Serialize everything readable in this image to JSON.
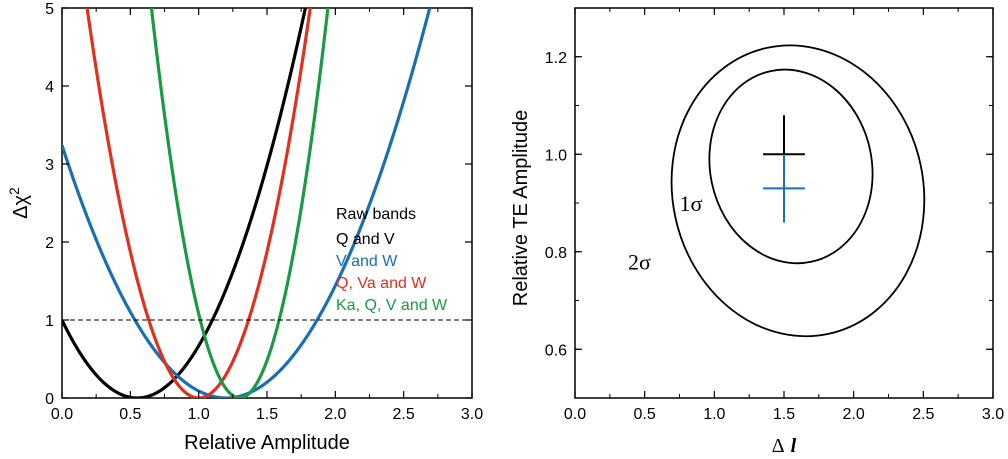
{
  "chart_data": [
    {
      "type": "line",
      "title": "",
      "xlabel": "Relative Amplitude",
      "ylabel_main": "Δχ",
      "ylabel_sup": "2",
      "xlim": [
        0,
        3
      ],
      "ylim": [
        0,
        5
      ],
      "xticks": [
        "0.0",
        "0.5",
        "1.0",
        "1.5",
        "2.0",
        "2.5",
        "3.0"
      ],
      "yticks": [
        "0",
        "1",
        "2",
        "3",
        "4",
        "5"
      ],
      "reference_line": {
        "y": 1,
        "style": "dashed"
      },
      "legend_title": "Raw bands",
      "series": [
        {
          "name": "Q and V",
          "color": "#000000",
          "min_x": 0.55,
          "k": 3.3
        },
        {
          "name": "V and W",
          "color": "#1a6faf",
          "min_x": 1.2,
          "k": 2.25
        },
        {
          "name": "Q, Va and W",
          "color": "#e0301e",
          "min_x": 1.0,
          "k": 7.5
        },
        {
          "name": "Ka, Q, V and W",
          "color": "#1a9a44",
          "min_x": 1.3,
          "k": 12.0
        }
      ]
    },
    {
      "type": "contour",
      "xlabel_main": "Δ",
      "xlabel_var": "l",
      "ylabel": "Relative TE Amplitude",
      "xlim": [
        0,
        3
      ],
      "ylim": [
        0.5,
        1.3
      ],
      "xticks": [
        "0.0",
        "0.5",
        "1.0",
        "1.5",
        "2.0",
        "2.5",
        "3.0"
      ],
      "yticks": [
        "0.6",
        "0.8",
        "1.0",
        "1.2"
      ],
      "contours": [
        {
          "label": "1σ",
          "cx": 1.55,
          "cy": 0.975,
          "rx": 0.58,
          "ry": 0.2
        },
        {
          "label": "2σ",
          "cx": 1.6,
          "cy": 0.925,
          "rx": 0.9,
          "ry": 0.3
        }
      ],
      "crosses": [
        {
          "x": 1.5,
          "y": 1.0,
          "x_err": 0.15,
          "y_err_up": 0.08,
          "y_err_down": 0.08,
          "color": "#000000"
        },
        {
          "x": 1.5,
          "y": 0.93,
          "x_err": 0.15,
          "y_err_up": 0.07,
          "y_err_down": 0.07,
          "color": "#1a6faf"
        }
      ]
    }
  ]
}
